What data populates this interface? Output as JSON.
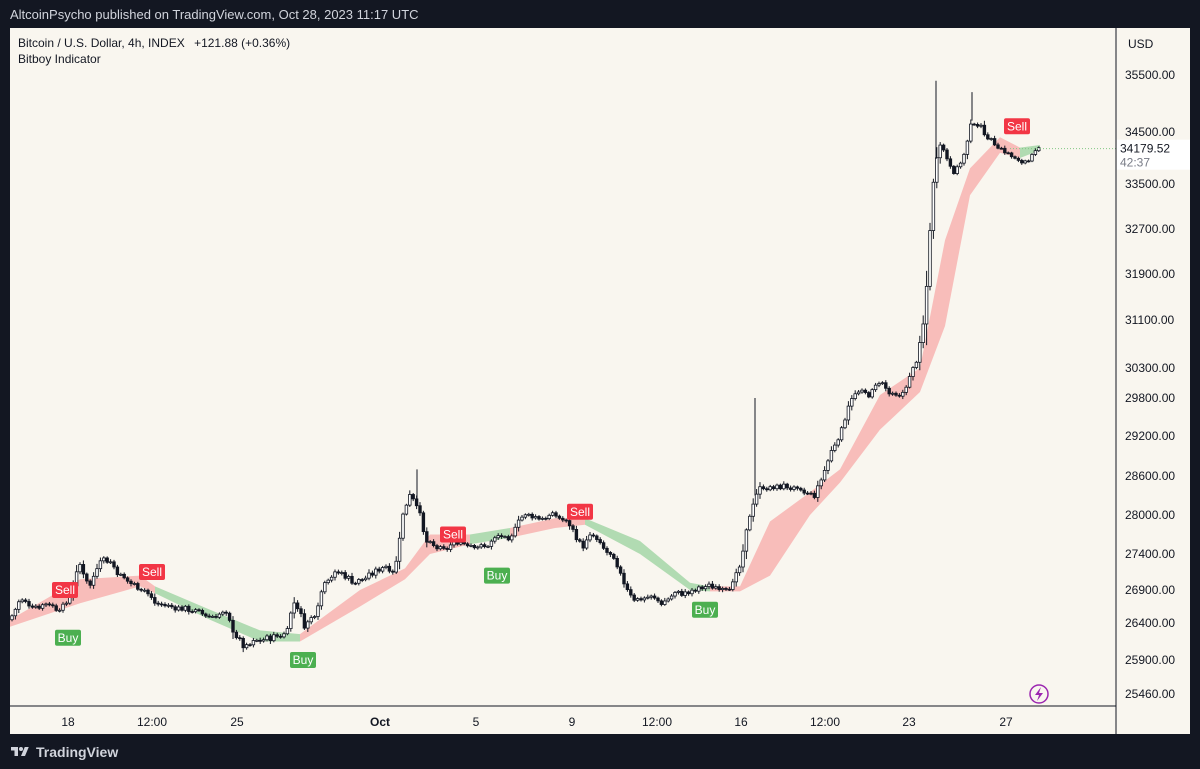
{
  "header": {
    "publisher_text": "AltcoinPsycho published on TradingView.com, Oct 28, 2023 11:17 UTC"
  },
  "legend": {
    "symbol_text": "Bitcoin / U.S. Dollar, 4h, INDEX",
    "change_text": "+121.88 (+0.36%)",
    "indicator_name": "Bitboy Indicator"
  },
  "footer": {
    "brand": "TradingView"
  },
  "colors": {
    "background": "#f9f6ef",
    "frame": "#131722",
    "buy_label": "#4caf50",
    "sell_label": "#f23645",
    "band_bear": "#f8b3b0",
    "band_bull": "#a5d6a7",
    "candle": "#131722",
    "current_price_bg": "#81c784"
  },
  "chart_data": {
    "type": "candlestick",
    "title": "",
    "currency": "USD",
    "y_axis": {
      "ticks": [
        35500.0,
        34500.0,
        33500.0,
        32700.0,
        31900.0,
        31100.0,
        30300.0,
        29800.0,
        29200.0,
        28600.0,
        28000.0,
        27400.0,
        26900.0,
        26400.0,
        25900.0,
        25460.0
      ],
      "range": [
        25200,
        35900
      ]
    },
    "x_axis": {
      "ticks": [
        "18",
        "12:00",
        "25",
        "Oct",
        "5",
        "9",
        "12:00",
        "16",
        "12:00",
        "23",
        "27"
      ],
      "bold_ticks": [
        "Oct"
      ]
    },
    "current_price": 34179.52,
    "countdown": "42:37",
    "close_path": [
      [
        0,
        26450
      ],
      [
        10,
        26750
      ],
      [
        20,
        26680
      ],
      [
        30,
        26650
      ],
      [
        38,
        26720
      ],
      [
        45,
        26620
      ],
      [
        55,
        26650
      ],
      [
        70,
        27250
      ],
      [
        80,
        26950
      ],
      [
        90,
        27350
      ],
      [
        100,
        27300
      ],
      [
        110,
        27100
      ],
      [
        120,
        27000
      ],
      [
        135,
        26900
      ],
      [
        145,
        26700
      ],
      [
        160,
        26650
      ],
      [
        180,
        26600
      ],
      [
        200,
        26500
      ],
      [
        215,
        26550
      ],
      [
        225,
        26250
      ],
      [
        235,
        26050
      ],
      [
        245,
        26150
      ],
      [
        260,
        26200
      ],
      [
        275,
        26250
      ],
      [
        285,
        26750
      ],
      [
        295,
        26350
      ],
      [
        305,
        26550
      ],
      [
        315,
        27050
      ],
      [
        330,
        27150
      ],
      [
        345,
        27000
      ],
      [
        360,
        27100
      ],
      [
        375,
        27250
      ],
      [
        385,
        27150
      ],
      [
        392,
        27950
      ],
      [
        400,
        28350
      ],
      [
        408,
        28150
      ],
      [
        415,
        27600
      ],
      [
        425,
        27500
      ],
      [
        435,
        27450
      ],
      [
        445,
        27600
      ],
      [
        460,
        27550
      ],
      [
        475,
        27500
      ],
      [
        490,
        27700
      ],
      [
        500,
        27550
      ],
      [
        507,
        27950
      ],
      [
        520,
        28000
      ],
      [
        530,
        27950
      ],
      [
        545,
        28000
      ],
      [
        560,
        27850
      ],
      [
        572,
        27500
      ],
      [
        582,
        27700
      ],
      [
        592,
        27500
      ],
      [
        602,
        27350
      ],
      [
        612,
        27050
      ],
      [
        625,
        26750
      ],
      [
        640,
        26800
      ],
      [
        652,
        26700
      ],
      [
        665,
        26850
      ],
      [
        680,
        26850
      ],
      [
        695,
        26950
      ],
      [
        710,
        26950
      ],
      [
        722,
        26950
      ],
      [
        732,
        27300
      ],
      [
        738,
        27900
      ],
      [
        745,
        28300
      ],
      [
        752,
        28450
      ],
      [
        760,
        28400
      ],
      [
        775,
        28450
      ],
      [
        790,
        28350
      ],
      [
        805,
        28300
      ],
      [
        815,
        28700
      ],
      [
        822,
        29000
      ],
      [
        832,
        29300
      ],
      [
        840,
        29800
      ],
      [
        850,
        29900
      ],
      [
        860,
        29850
      ],
      [
        870,
        30100
      ],
      [
        880,
        29850
      ],
      [
        890,
        29800
      ],
      [
        900,
        30150
      ],
      [
        908,
        30500
      ],
      [
        915,
        31200
      ],
      [
        920,
        32700
      ],
      [
        925,
        33900
      ],
      [
        930,
        34300
      ],
      [
        937,
        34000
      ],
      [
        945,
        33700
      ],
      [
        955,
        34100
      ],
      [
        962,
        34700
      ],
      [
        970,
        34600
      ],
      [
        980,
        34350
      ],
      [
        990,
        34200
      ],
      [
        1000,
        34050
      ],
      [
        1010,
        33900
      ],
      [
        1020,
        34000
      ],
      [
        1030,
        34180
      ]
    ],
    "spikes": [
      {
        "x": 745,
        "high": 29800
      },
      {
        "x": 926,
        "high": 35400
      },
      {
        "x": 962,
        "high": 35200
      },
      {
        "x": 407,
        "high": 28700
      }
    ],
    "band_segments": [
      {
        "trend": "bear",
        "points": [
          [
            0,
            26450,
            26350
          ],
          [
            70,
            27050,
            26700
          ],
          [
            130,
            27100,
            26950
          ],
          [
            145,
            26950,
            26850
          ]
        ]
      },
      {
        "trend": "bull",
        "points": [
          [
            145,
            26950,
            26850
          ],
          [
            200,
            26600,
            26450
          ],
          [
            250,
            26300,
            26150
          ],
          [
            290,
            26250,
            26150
          ]
        ]
      },
      {
        "trend": "bear",
        "points": [
          [
            290,
            26250,
            26150
          ],
          [
            350,
            26900,
            26650
          ],
          [
            395,
            27200,
            27050
          ],
          [
            420,
            27700,
            27400
          ],
          [
            460,
            27700,
            27550
          ]
        ]
      },
      {
        "trend": "bull",
        "points": [
          [
            460,
            27700,
            27550
          ],
          [
            500,
            27800,
            27650
          ]
        ]
      },
      {
        "trend": "bear",
        "points": [
          [
            500,
            27800,
            27650
          ],
          [
            545,
            27950,
            27800
          ],
          [
            575,
            27950,
            27850
          ]
        ]
      },
      {
        "trend": "bull",
        "points": [
          [
            575,
            27950,
            27850
          ],
          [
            630,
            27600,
            27400
          ],
          [
            680,
            27000,
            26900
          ],
          [
            700,
            26950,
            26880
          ]
        ]
      },
      {
        "trend": "bear",
        "points": [
          [
            700,
            26950,
            26880
          ],
          [
            730,
            26950,
            26880
          ],
          [
            760,
            27900,
            27100
          ],
          [
            800,
            28350,
            28000
          ],
          [
            830,
            28700,
            28500
          ],
          [
            870,
            29850,
            29300
          ],
          [
            910,
            30300,
            29900
          ],
          [
            935,
            32500,
            31000
          ],
          [
            960,
            33800,
            33300
          ],
          [
            990,
            34400,
            34100
          ],
          [
            1010,
            34200,
            34000
          ]
        ]
      },
      {
        "trend": "bull",
        "points": [
          [
            1010,
            34200,
            34000
          ],
          [
            1030,
            34250,
            34150
          ]
        ]
      }
    ],
    "signals": [
      {
        "type": "Sell",
        "x": 55,
        "price": 26900
      },
      {
        "type": "Buy",
        "x": 58,
        "price": 26200
      },
      {
        "type": "Sell",
        "x": 142,
        "price": 27150
      },
      {
        "type": "Buy",
        "x": 293,
        "price": 25900
      },
      {
        "type": "Sell",
        "x": 443,
        "price": 27700
      },
      {
        "type": "Buy",
        "x": 487,
        "price": 27100
      },
      {
        "type": "Sell",
        "x": 570,
        "price": 28050
      },
      {
        "type": "Buy",
        "x": 695,
        "price": 26600
      },
      {
        "type": "Sell",
        "x": 1007,
        "price": 34600
      }
    ]
  }
}
